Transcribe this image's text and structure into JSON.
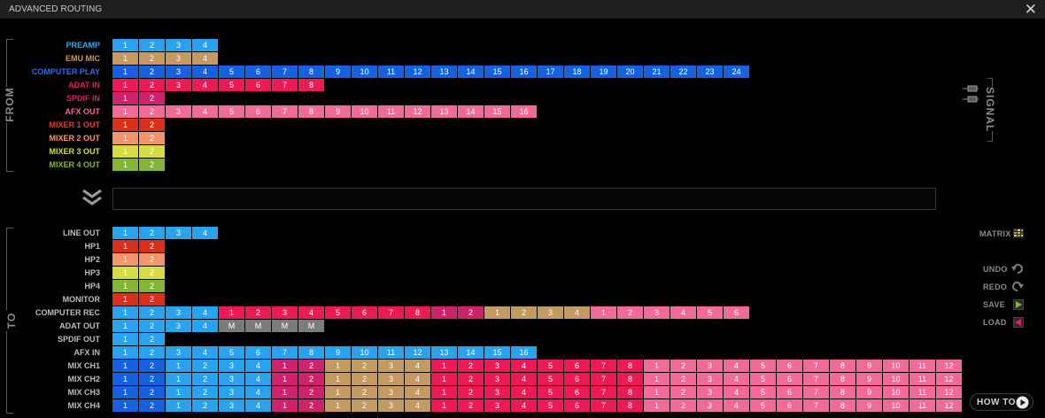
{
  "window": {
    "title": "ADVANCED ROUTING",
    "close_icon": "close-icon"
  },
  "colors": {
    "blue_light": "#29a2ef",
    "blue_dark": "#1561e2",
    "tan": "#c49a60",
    "red_pink": "#ee1a58",
    "pink": "#f36a98",
    "maroon": "#d0216d",
    "mixer1": "#d9301c",
    "mixer2": "#f3956a",
    "mixer3": "#d6dc42",
    "mixer4": "#83b638",
    "gray": "#7b7b7b"
  },
  "from": {
    "label": "FROM",
    "rows": [
      {
        "id": "preamp",
        "label": "PREAMP",
        "label_color": "#2fa8f5",
        "segments": [
          {
            "color": "blue_light",
            "values": [
              "1",
              "2",
              "3",
              "4"
            ]
          }
        ]
      },
      {
        "id": "emu-mic",
        "label": "EMU MIC",
        "label_color": "#c49a60",
        "segments": [
          {
            "color": "tan",
            "values": [
              "1",
              "2",
              "3",
              "4"
            ]
          }
        ]
      },
      {
        "id": "computer-play",
        "label": "COMPUTER PLAY",
        "label_color": "#2e6cf0",
        "segments": [
          {
            "color": "blue_dark",
            "values": [
              "1",
              "2",
              "3",
              "4",
              "5",
              "6",
              "7",
              "8",
              "9",
              "10",
              "11",
              "12",
              "13",
              "14",
              "15",
              "16",
              "17",
              "18",
              "19",
              "20",
              "21",
              "22",
              "23",
              "24"
            ]
          }
        ]
      },
      {
        "id": "adat-in",
        "label": "ADAT IN",
        "label_color": "#ee1a58",
        "segments": [
          {
            "color": "red_pink",
            "values": [
              "1",
              "2",
              "3",
              "4",
              "5",
              "6",
              "7",
              "8"
            ]
          }
        ]
      },
      {
        "id": "spdif-in",
        "label": "SPDIF IN",
        "label_color": "#d0216d",
        "segments": [
          {
            "color": "maroon",
            "values": [
              "1",
              "2"
            ]
          }
        ]
      },
      {
        "id": "afx-out",
        "label": "AFX OUT",
        "label_color": "#f36a98",
        "segments": [
          {
            "color": "pink",
            "values": [
              "1",
              "2",
              "3",
              "4",
              "5",
              "6",
              "7",
              "8",
              "9",
              "10",
              "11",
              "12",
              "13",
              "14",
              "15",
              "16"
            ]
          }
        ]
      },
      {
        "id": "mixer-1-out",
        "label": "MIXER 1 OUT",
        "label_color": "#e0402a",
        "segments": [
          {
            "color": "mixer1",
            "values": [
              "1",
              "2"
            ]
          }
        ]
      },
      {
        "id": "mixer-2-out",
        "label": "MIXER 2 OUT",
        "label_color": "#f3956a",
        "segments": [
          {
            "color": "mixer2",
            "values": [
              "1",
              "2"
            ]
          }
        ]
      },
      {
        "id": "mixer-3-out",
        "label": "MIXER 3 OUT",
        "label_color": "#d6dc42",
        "segments": [
          {
            "color": "mixer3",
            "values": [
              "1",
              "2"
            ]
          }
        ]
      },
      {
        "id": "mixer-4-out",
        "label": "MIXER 4 OUT",
        "label_color": "#83b638",
        "segments": [
          {
            "color": "mixer4",
            "values": [
              "1",
              "2"
            ]
          }
        ]
      }
    ]
  },
  "to": {
    "label": "TO",
    "rows": [
      {
        "id": "line-out",
        "label": "LINE OUT",
        "label_color": "#bdbdbd",
        "segments": [
          {
            "color": "blue_light",
            "values": [
              "1",
              "2",
              "3",
              "4"
            ]
          }
        ]
      },
      {
        "id": "hp1",
        "label": "HP1",
        "label_color": "#bdbdbd",
        "segments": [
          {
            "color": "mixer1",
            "values": [
              "1",
              "2"
            ]
          }
        ]
      },
      {
        "id": "hp2",
        "label": "HP2",
        "label_color": "#bdbdbd",
        "segments": [
          {
            "color": "mixer2",
            "values": [
              "1",
              "2"
            ]
          }
        ]
      },
      {
        "id": "hp3",
        "label": "HP3",
        "label_color": "#bdbdbd",
        "segments": [
          {
            "color": "mixer3",
            "values": [
              "1",
              "2"
            ]
          }
        ]
      },
      {
        "id": "hp4",
        "label": "HP4",
        "label_color": "#bdbdbd",
        "segments": [
          {
            "color": "mixer4",
            "values": [
              "1",
              "2"
            ]
          }
        ]
      },
      {
        "id": "monitor",
        "label": "MONITOR",
        "label_color": "#bdbdbd",
        "segments": [
          {
            "color": "mixer1",
            "values": [
              "1",
              "2"
            ]
          }
        ]
      },
      {
        "id": "computer-rec",
        "label": "COMPUTER REC",
        "label_color": "#bdbdbd",
        "segments": [
          {
            "color": "blue_light",
            "values": [
              "1",
              "2",
              "3",
              "4"
            ]
          },
          {
            "color": "red_pink",
            "values": [
              "1",
              "2",
              "3",
              "4",
              "5",
              "6",
              "7",
              "8"
            ]
          },
          {
            "color": "maroon",
            "values": [
              "1",
              "2"
            ]
          },
          {
            "color": "tan",
            "values": [
              "1",
              "2",
              "3",
              "4"
            ]
          },
          {
            "color": "pink",
            "values": [
              "1",
              "2",
              "3",
              "4",
              "5",
              "6"
            ]
          }
        ]
      },
      {
        "id": "adat-out",
        "label": "ADAT OUT",
        "label_color": "#bdbdbd",
        "segments": [
          {
            "color": "blue_light",
            "values": [
              "1",
              "2",
              "3",
              "4"
            ]
          },
          {
            "color": "gray",
            "values": [
              "M",
              "M",
              "M",
              "M"
            ]
          }
        ]
      },
      {
        "id": "spdif-out",
        "label": "SPDIF OUT",
        "label_color": "#bdbdbd",
        "segments": [
          {
            "color": "blue_light",
            "values": [
              "1",
              "2"
            ]
          }
        ]
      },
      {
        "id": "afx-in",
        "label": "AFX IN",
        "label_color": "#bdbdbd",
        "segments": [
          {
            "color": "blue_light",
            "values": [
              "1",
              "2",
              "3",
              "4",
              "5",
              "6",
              "7",
              "8",
              "9",
              "10",
              "11",
              "12",
              "13",
              "14",
              "15",
              "16"
            ]
          }
        ]
      },
      {
        "id": "mix-ch1",
        "label": "MIX CH1",
        "label_color": "#bdbdbd",
        "segments": [
          {
            "color": "blue_dark",
            "values": [
              "1",
              "2"
            ]
          },
          {
            "color": "blue_light",
            "values": [
              "1",
              "2",
              "3",
              "4"
            ]
          },
          {
            "color": "maroon",
            "values": [
              "1",
              "2"
            ]
          },
          {
            "color": "tan",
            "values": [
              "1",
              "2",
              "3",
              "4"
            ]
          },
          {
            "color": "red_pink",
            "values": [
              "1",
              "2",
              "3",
              "4",
              "5",
              "6",
              "7",
              "8"
            ]
          },
          {
            "color": "pink",
            "values": [
              "1",
              "2",
              "3",
              "4",
              "5",
              "6",
              "7",
              "8",
              "9",
              "10",
              "11",
              "12"
            ]
          }
        ]
      },
      {
        "id": "mix-ch2",
        "label": "MIX CH2",
        "label_color": "#bdbdbd",
        "segments": [
          {
            "color": "blue_dark",
            "values": [
              "1",
              "2"
            ]
          },
          {
            "color": "blue_light",
            "values": [
              "1",
              "2",
              "3",
              "4"
            ]
          },
          {
            "color": "maroon",
            "values": [
              "1",
              "2"
            ]
          },
          {
            "color": "tan",
            "values": [
              "1",
              "2",
              "3",
              "4"
            ]
          },
          {
            "color": "red_pink",
            "values": [
              "1",
              "2",
              "3",
              "4",
              "5",
              "6",
              "7",
              "8"
            ]
          },
          {
            "color": "pink",
            "values": [
              "1",
              "2",
              "3",
              "4",
              "5",
              "6",
              "7",
              "8",
              "9",
              "10",
              "11",
              "12"
            ]
          }
        ]
      },
      {
        "id": "mix-ch3",
        "label": "MIX CH3",
        "label_color": "#bdbdbd",
        "segments": [
          {
            "color": "blue_dark",
            "values": [
              "1",
              "2"
            ]
          },
          {
            "color": "blue_light",
            "values": [
              "1",
              "2",
              "3",
              "4"
            ]
          },
          {
            "color": "maroon",
            "values": [
              "1",
              "2"
            ]
          },
          {
            "color": "tan",
            "values": [
              "1",
              "2",
              "3",
              "4"
            ]
          },
          {
            "color": "red_pink",
            "values": [
              "1",
              "2",
              "3",
              "4",
              "5",
              "6",
              "7",
              "8"
            ]
          },
          {
            "color": "pink",
            "values": [
              "1",
              "2",
              "3",
              "4",
              "5",
              "6",
              "7",
              "8",
              "9",
              "10",
              "11",
              "12"
            ]
          }
        ]
      },
      {
        "id": "mix-ch4",
        "label": "MIX CH4",
        "label_color": "#bdbdbd",
        "segments": [
          {
            "color": "blue_dark",
            "values": [
              "1",
              "2"
            ]
          },
          {
            "color": "blue_light",
            "values": [
              "1",
              "2",
              "3",
              "4"
            ]
          },
          {
            "color": "maroon",
            "values": [
              "1",
              "2"
            ]
          },
          {
            "color": "tan",
            "values": [
              "1",
              "2",
              "3",
              "4"
            ]
          },
          {
            "color": "red_pink",
            "values": [
              "1",
              "2",
              "3",
              "4",
              "5",
              "6",
              "7",
              "8"
            ]
          },
          {
            "color": "pink",
            "values": [
              "1",
              "2",
              "3",
              "4",
              "5",
              "6",
              "7",
              "8",
              "9",
              "10",
              "11",
              "12"
            ]
          }
        ]
      }
    ]
  },
  "signal": {
    "label": "SIGNAL",
    "icon": "slider-icon"
  },
  "sidebar": {
    "matrix": {
      "label": "MATRIX",
      "icon": "matrix-icon"
    },
    "undo": {
      "label": "UNDO",
      "icon": "undo-icon"
    },
    "redo": {
      "label": "REDO",
      "icon": "redo-icon"
    },
    "save": {
      "label": "SAVE",
      "icon": "save-icon"
    },
    "load": {
      "label": "LOAD",
      "icon": "load-icon"
    }
  },
  "howto": {
    "label": "HOW TO",
    "icon": "play-icon"
  },
  "drop_zone": {
    "icon": "double-chevron-down-icon"
  }
}
